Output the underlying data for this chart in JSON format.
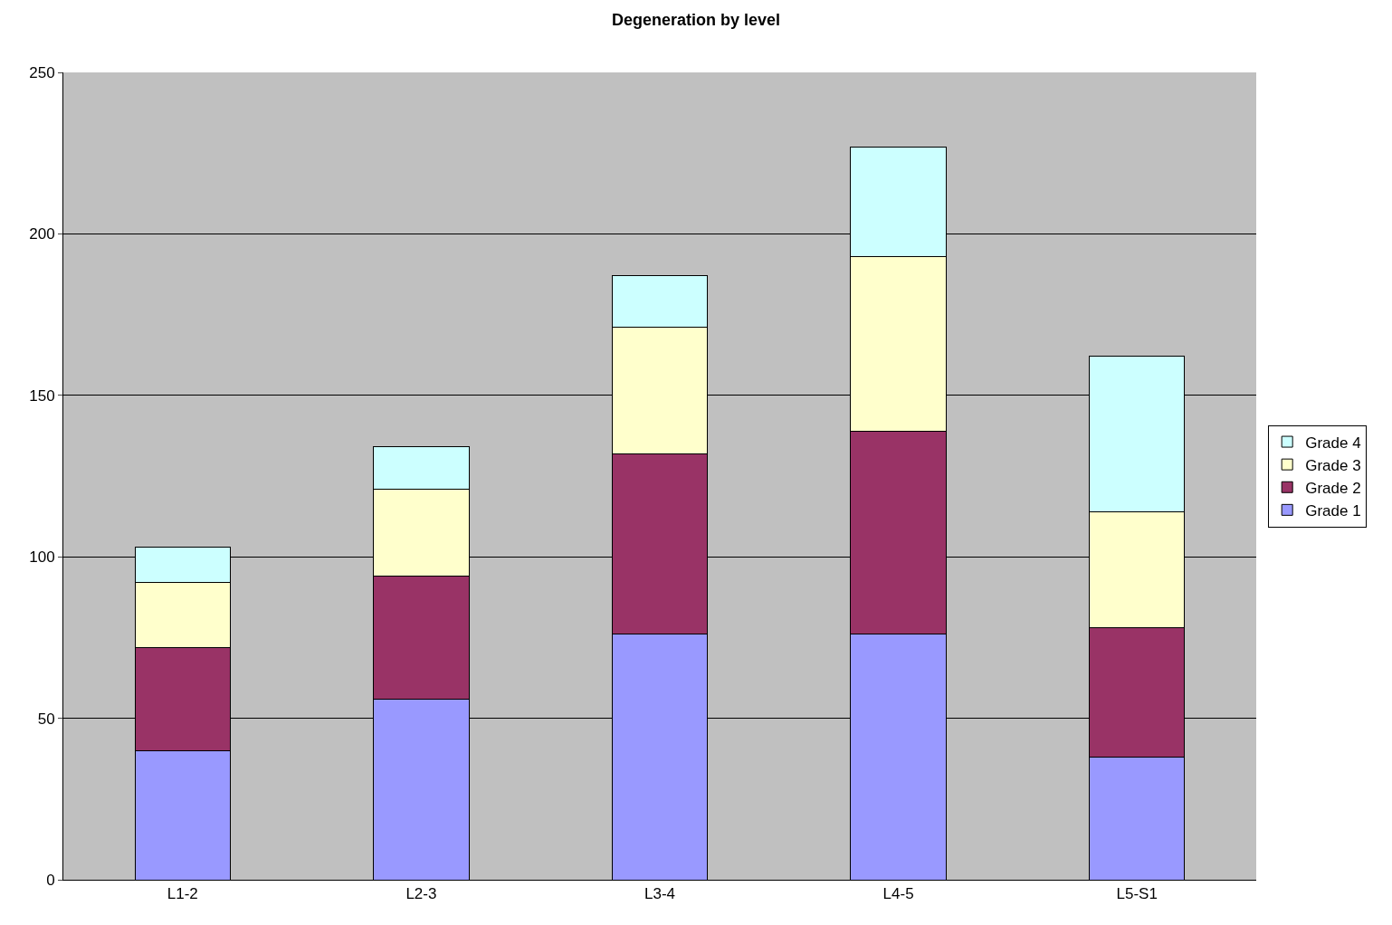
{
  "chart_data": {
    "type": "bar",
    "title": "Degeneration by level",
    "categories": [
      "L1-2",
      "L2-3",
      "L3-4",
      "L4-5",
      "L5-S1"
    ],
    "stacked": true,
    "series": [
      {
        "name": "Grade 1",
        "color": "#9999ff",
        "values": [
          40,
          56,
          76,
          76,
          38
        ]
      },
      {
        "name": "Grade 2",
        "color": "#993366",
        "values": [
          32,
          38,
          56,
          63,
          40
        ]
      },
      {
        "name": "Grade 3",
        "color": "#ffffcc",
        "values": [
          20,
          27,
          39,
          54,
          36
        ]
      },
      {
        "name": "Grade 4",
        "color": "#ccffff",
        "values": [
          11,
          13,
          16,
          34,
          48
        ]
      }
    ],
    "ylim": [
      0,
      250
    ],
    "yticks": [
      0,
      50,
      100,
      150,
      200,
      250
    ],
    "grid": "y",
    "legend": "right"
  }
}
